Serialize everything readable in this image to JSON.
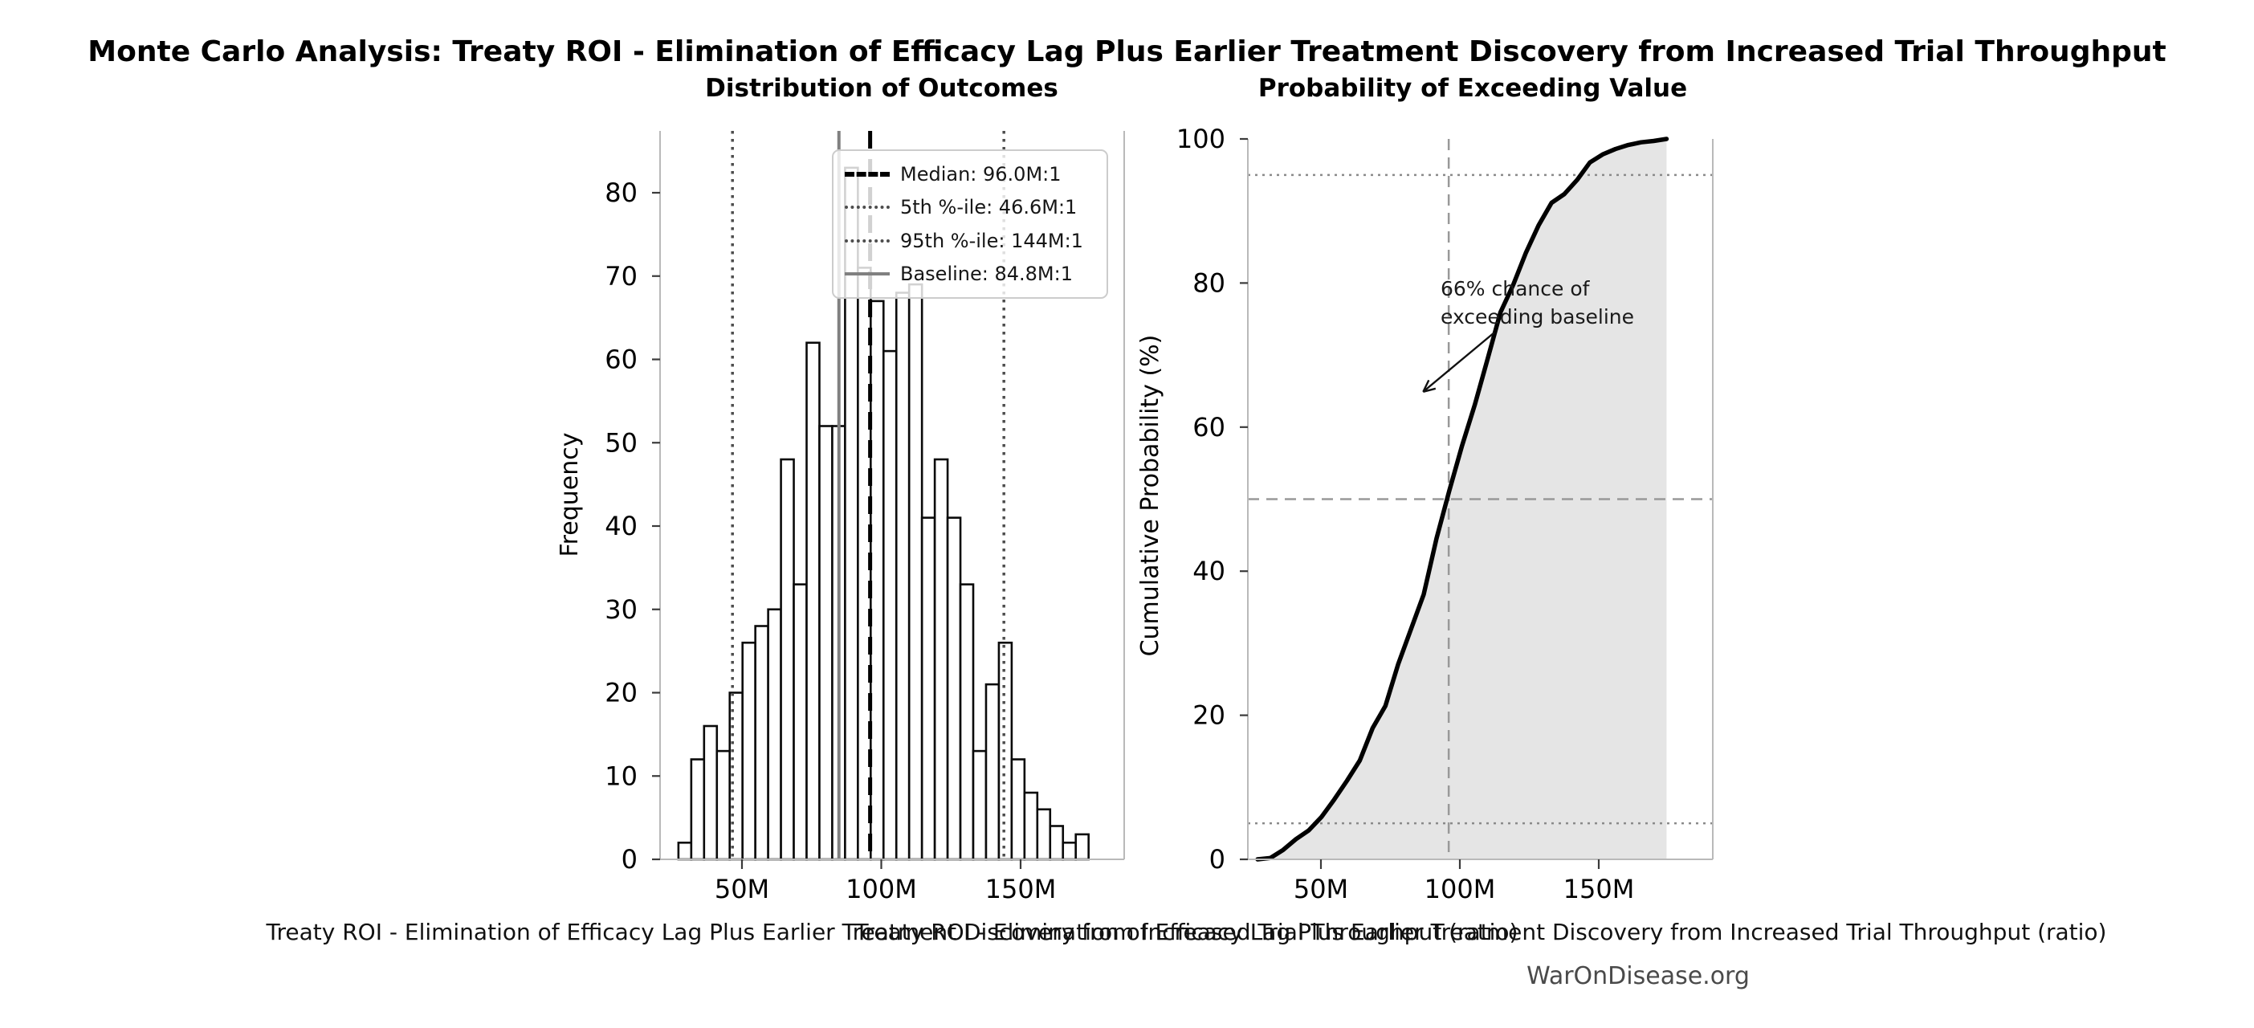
{
  "figure": {
    "title": "Monte Carlo Analysis: Treaty ROI - Elimination of Efficacy Lag Plus Earlier Treatment Discovery from Increased Trial Throughput",
    "watermark": "WarOnDisease.org"
  },
  "chart_data": [
    {
      "type": "bar",
      "subtype": "histogram",
      "title": "Distribution of Outcomes",
      "xlabel": "Treaty ROI - Elimination of Efficacy Lag Plus Earlier Treatment Discovery from Increased Trial Throughput (ratio)",
      "ylabel": "Frequency",
      "bar_fill": "#ffffff",
      "bar_edge": "#0a0a0a",
      "bins": {
        "start_m": 27.2,
        "width_m": 4.6,
        "count": 32
      },
      "counts": [
        2,
        12,
        16,
        13,
        20,
        26,
        28,
        30,
        48,
        33,
        62,
        52,
        52,
        83,
        71,
        67,
        61,
        68,
        69,
        41,
        48,
        41,
        33,
        13,
        21,
        26,
        12,
        8,
        6,
        4,
        2,
        3
      ],
      "xticks": [
        {
          "v": 50,
          "label": "50M"
        },
        {
          "v": 100,
          "label": "100M"
        },
        {
          "v": 150,
          "label": "150M"
        }
      ],
      "yticks": [
        0,
        10,
        20,
        30,
        40,
        50,
        60,
        70,
        80
      ],
      "ylim": [
        0,
        87.5
      ],
      "xlim_m": [
        20.6,
        187.2
      ],
      "grid": false,
      "legend_position": "upper right",
      "reference_lines": [
        {
          "name": "median",
          "value_m": 96.0,
          "style": "dashed",
          "color": "#000000",
          "width": 5,
          "label": "Median: 96.0M:1"
        },
        {
          "name": "p5",
          "value_m": 46.6,
          "style": "dotted",
          "color": "#4d4d4d",
          "width": 3.5,
          "label": "5th %-ile: 46.6M:1"
        },
        {
          "name": "p95",
          "value_m": 144,
          "style": "dotted",
          "color": "#4d4d4d",
          "width": 3.5,
          "label": "95th %-ile: 144M:1"
        },
        {
          "name": "baseline",
          "value_m": 84.8,
          "style": "solid",
          "color": "#808080",
          "width": 4,
          "label": "Baseline: 84.8M:1"
        }
      ]
    },
    {
      "type": "line",
      "subtype": "empirical-cdf",
      "title": "Probability of Exceeding Value",
      "xlabel": "Treaty ROI - Elimination of Efficacy Lag Plus Earlier Treatment Discovery from Increased Trial Throughput (ratio)",
      "ylabel": "Cumulative Probability (%)",
      "source": "cumulative sum of Distribution of Outcomes counts, normalized to 100%",
      "line_color": "#000000",
      "fill_color": "#e5e5e5",
      "xticks": [
        {
          "v": 50,
          "label": "50M"
        },
        {
          "v": 100,
          "label": "100M"
        },
        {
          "v": 150,
          "label": "150M"
        }
      ],
      "yticks": [
        0,
        20,
        40,
        60,
        80,
        100
      ],
      "ylim": [
        0,
        100
      ],
      "xlim_m": [
        23.7,
        191.1
      ],
      "grid": false,
      "median_crosshair": {
        "x_m": 96.0,
        "y_pct": 50,
        "style": "dashed",
        "color": "#999999"
      },
      "dotted_levels_pct": [
        5,
        95
      ],
      "annotation": {
        "lines": [
          "66% chance of",
          "exceeding baseline"
        ],
        "exceed_probability_pct": 66,
        "arrow_tip": {
          "x_m": 86.8,
          "y_pct": 64.9
        }
      }
    }
  ],
  "colors": {
    "spine": "#b9b9b9",
    "tick": "#3a3a3a",
    "watermark_text": "#4a4a4a",
    "annotation_arrow": "#111111"
  }
}
